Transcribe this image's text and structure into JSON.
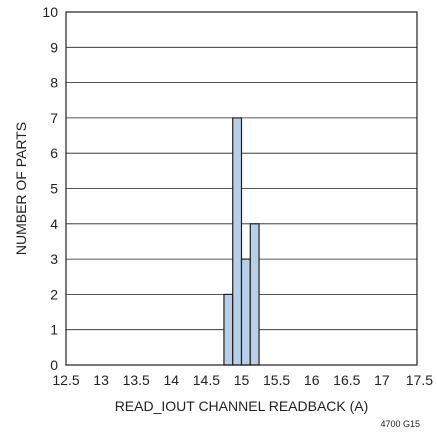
{
  "chart_data": {
    "type": "bar",
    "title": "",
    "xlabel": "READ_IOUT CHANNEL READBACK (A)",
    "ylabel": "NUMBER OF PARTS",
    "xlim": [
      12.5,
      17.5
    ],
    "ylim": [
      0,
      10
    ],
    "bin_width": 0.125,
    "x_ticks": [
      "12.5",
      "13",
      "13.5",
      "14",
      "14.5",
      "15",
      "15.5",
      "16",
      "16.5",
      "17",
      "17.5"
    ],
    "y_ticks": [
      "0",
      "1",
      "2",
      "3",
      "4",
      "5",
      "6",
      "7",
      "8",
      "9",
      "10"
    ],
    "bins": [
      {
        "x_start": 14.75,
        "x_end": 14.875,
        "count": 2
      },
      {
        "x_start": 14.875,
        "x_end": 15.0,
        "count": 7
      },
      {
        "x_start": 15.0,
        "x_end": 15.125,
        "count": 3
      },
      {
        "x_start": 15.125,
        "x_end": 15.25,
        "count": 4
      }
    ],
    "grid": {
      "horizontal": true,
      "vertical": false
    },
    "colors": {
      "bar_fill": "#b8cfe8",
      "bar_stroke": "#231f20",
      "grid": "#231f20",
      "text": "#231f20"
    },
    "figure_code": "4700 G15"
  }
}
